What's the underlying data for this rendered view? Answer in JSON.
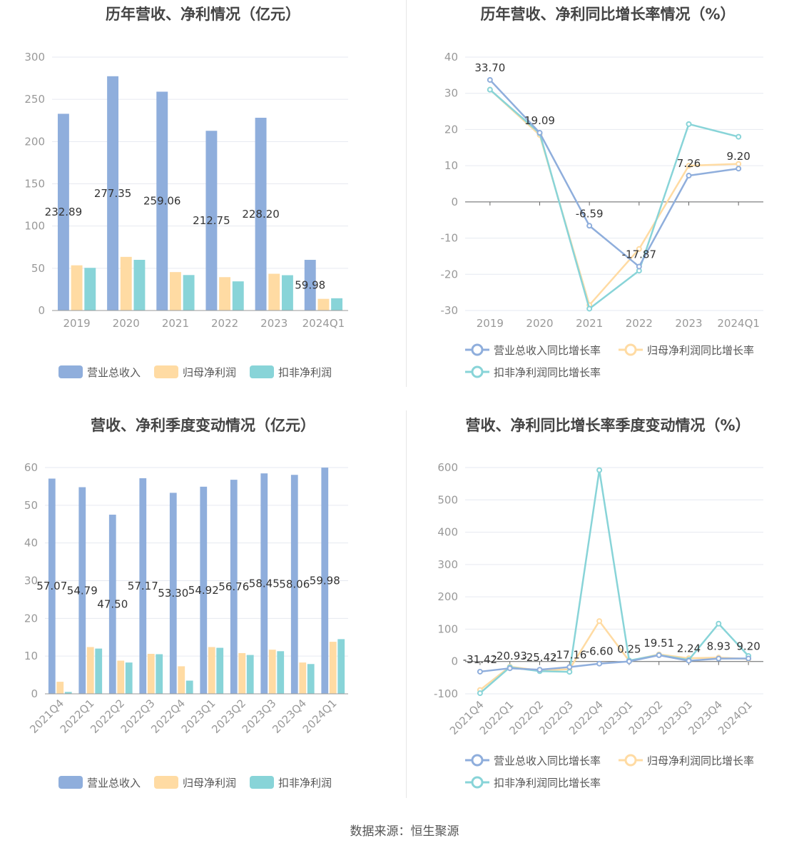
{
  "colors": {
    "revenue": "#8faedc",
    "net_profit": "#ffdba3",
    "deducted": "#88d4d8",
    "axis": "#999999",
    "grid": "#e6e9f0",
    "label": "#333333"
  },
  "footer": {
    "source": "数据来源：恒生聚源"
  },
  "chart_data": [
    {
      "type": "bar",
      "title": "历年营收、净利情况（亿元）",
      "categories": [
        "2019",
        "2020",
        "2021",
        "2022",
        "2023",
        "2024Q1"
      ],
      "ylim": [
        0,
        300
      ],
      "yticks": [
        0,
        50,
        100,
        150,
        200,
        250,
        300
      ],
      "legend_position": "bottom",
      "grid": true,
      "series": [
        {
          "name": "营业总收入",
          "values": [
            232.89,
            277.35,
            259.06,
            212.75,
            228.2,
            59.98
          ],
          "labels": [
            "232.89",
            "277.35",
            "259.06",
            "212.75",
            "228.20",
            "59.98"
          ]
        },
        {
          "name": "归母净利润",
          "values": [
            53.5,
            63.5,
            45.5,
            39.5,
            43.5,
            13.8
          ]
        },
        {
          "name": "扣非净利润",
          "values": [
            50.5,
            60.0,
            42.0,
            34.5,
            41.8,
            14.5
          ]
        }
      ]
    },
    {
      "type": "line",
      "title": "历年营收、净利同比增长率情况（%）",
      "categories": [
        "2019",
        "2020",
        "2021",
        "2022",
        "2023",
        "2024Q1"
      ],
      "ylim": [
        -30,
        40
      ],
      "yticks": [
        -30,
        -20,
        -10,
        0,
        10,
        20,
        30,
        40
      ],
      "legend_position": "bottom",
      "grid": true,
      "series": [
        {
          "name": "营业总收入同比增长率",
          "values": [
            33.7,
            19.09,
            -6.59,
            -17.87,
            7.26,
            9.2
          ],
          "labels": [
            "33.70",
            "19.09",
            "-6.59",
            "-17.87",
            "7.26",
            "9.20"
          ]
        },
        {
          "name": "归母净利润同比增长率",
          "values": [
            31.0,
            18.5,
            -28.5,
            -13.0,
            10.0,
            10.5
          ]
        },
        {
          "name": "扣非净利润同比增长率",
          "values": [
            31.0,
            19.0,
            -29.5,
            -19.0,
            21.5,
            18.0
          ]
        }
      ]
    },
    {
      "type": "bar",
      "title": "营收、净利季度变动情况（亿元）",
      "categories": [
        "2021Q4",
        "2022Q1",
        "2022Q2",
        "2022Q3",
        "2022Q4",
        "2023Q1",
        "2023Q2",
        "2023Q3",
        "2023Q4",
        "2024Q1"
      ],
      "ylim": [
        0,
        60
      ],
      "yticks": [
        0,
        10,
        20,
        30,
        40,
        50,
        60
      ],
      "legend_position": "bottom",
      "grid": true,
      "series": [
        {
          "name": "营业总收入",
          "values": [
            57.07,
            54.79,
            47.5,
            57.17,
            53.3,
            54.92,
            56.76,
            58.45,
            58.06,
            59.98
          ],
          "labels": [
            "57.07",
            "54.79",
            "47.50",
            "57.17",
            "53.30",
            "54.92",
            "56.76",
            "58.45",
            "58.06",
            "59.98"
          ]
        },
        {
          "name": "归母净利润",
          "values": [
            3.2,
            12.4,
            8.8,
            10.6,
            7.3,
            12.4,
            10.8,
            11.7,
            8.3,
            13.8
          ]
        },
        {
          "name": "扣非净利润",
          "values": [
            0.5,
            12.0,
            8.3,
            10.5,
            3.5,
            12.2,
            10.3,
            11.3,
            7.9,
            14.5
          ]
        }
      ]
    },
    {
      "type": "line",
      "title": "营收、净利同比增长率季度变动情况（%）",
      "categories": [
        "2021Q4",
        "2022Q1",
        "2022Q2",
        "2022Q3",
        "2022Q4",
        "2023Q1",
        "2023Q2",
        "2023Q3",
        "2023Q4",
        "2024Q1"
      ],
      "ylim": [
        -100,
        600
      ],
      "yticks": [
        -100,
        0,
        100,
        200,
        300,
        400,
        500,
        600
      ],
      "legend_position": "bottom",
      "grid": true,
      "series": [
        {
          "name": "营业总收入同比增长率",
          "values": [
            -31.42,
            -20.93,
            -25.42,
            -17.16,
            -6.6,
            0.25,
            19.51,
            2.24,
            8.93,
            9.2
          ],
          "labels": [
            "-31.42",
            "-20.93",
            "-25.42",
            "-17.16",
            "-6.60",
            "0.25",
            "19.51",
            "2.24",
            "8.93",
            "9.20"
          ]
        },
        {
          "name": "归母净利润同比增长率",
          "values": [
            -88,
            -16,
            -28,
            -24,
            125,
            2,
            22,
            10,
            12,
            8
          ]
        },
        {
          "name": "扣非净利润同比增长率",
          "values": [
            -98,
            -18,
            -30,
            -32,
            592,
            3,
            20,
            5,
            117,
            17
          ]
        }
      ]
    }
  ]
}
